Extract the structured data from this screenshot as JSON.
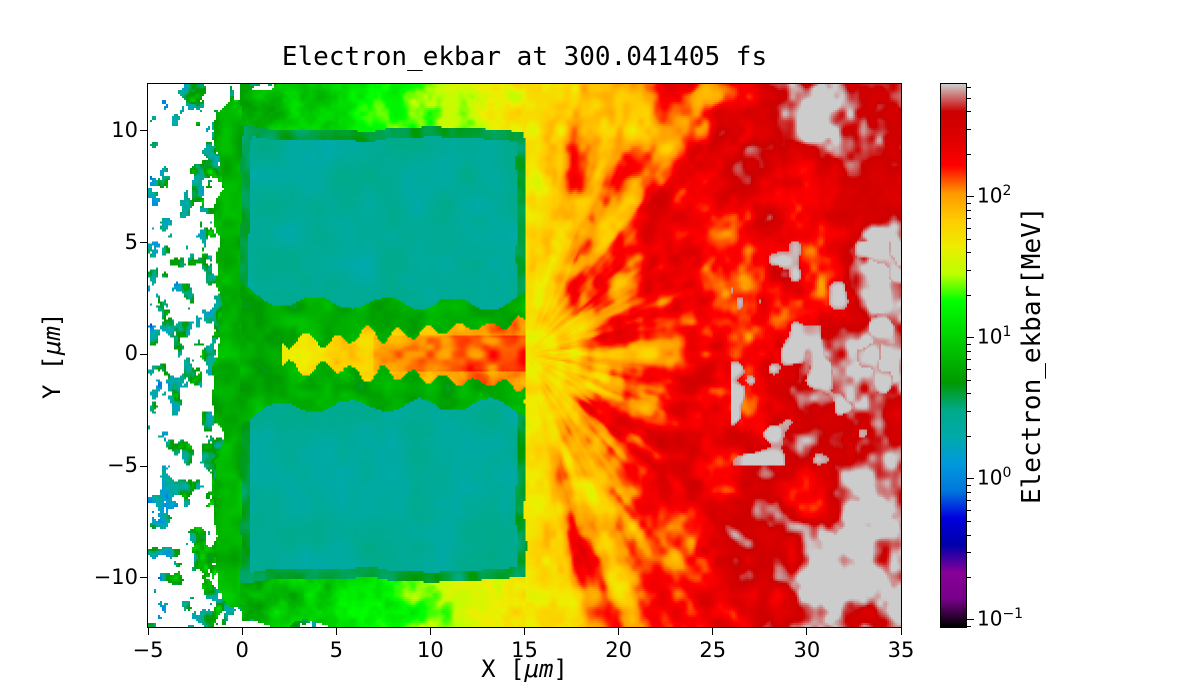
{
  "chart_data": {
    "type": "heatmap",
    "title": "Electron_ekbar at 300.041405 fs",
    "quantity": "Electron_ekbar",
    "time_fs": 300.041405,
    "xlabel": {
      "pre": "X [",
      "math": "μm",
      "post": "]"
    },
    "ylabel": {
      "pre": "Y [",
      "math": "μm",
      "post": "]"
    },
    "xlim": [
      -5,
      35
    ],
    "ylim": [
      -12.2,
      12.1
    ],
    "xticks": [
      {
        "value": -5,
        "label": "−5"
      },
      {
        "value": 0,
        "label": "0"
      },
      {
        "value": 5,
        "label": "5"
      },
      {
        "value": 10,
        "label": "10"
      },
      {
        "value": 15,
        "label": "15"
      },
      {
        "value": 20,
        "label": "20"
      },
      {
        "value": 25,
        "label": "25"
      },
      {
        "value": 30,
        "label": "30"
      },
      {
        "value": 35,
        "label": "35"
      }
    ],
    "yticks": [
      {
        "value": -10,
        "label": "−10"
      },
      {
        "value": -5,
        "label": "−5"
      },
      {
        "value": 0,
        "label": "0"
      },
      {
        "value": 5,
        "label": "5"
      },
      {
        "value": 10,
        "label": "10"
      }
    ],
    "grid": false,
    "colorbar": {
      "label": "Electron_ekbar[MeV]",
      "scale": "log",
      "unit": "MeV",
      "log10_min": -1.05,
      "log10_max": 2.8,
      "ticks": [
        {
          "log10": 2,
          "base": "10",
          "exp": "2"
        },
        {
          "log10": 1,
          "base": "10",
          "exp": "1"
        },
        {
          "log10": 0,
          "base": "10",
          "exp": "0"
        },
        {
          "log10": -1,
          "base": "10",
          "exp": "−1"
        }
      ],
      "colormap": {
        "name": "nipy_spectral",
        "stops": [
          [
            0.0,
            0,
            0,
            0
          ],
          [
            0.05,
            119,
            0,
            136
          ],
          [
            0.1,
            136,
            0,
            153
          ],
          [
            0.15,
            0,
            0,
            170
          ],
          [
            0.2,
            0,
            0,
            221
          ],
          [
            0.25,
            0,
            119,
            221
          ],
          [
            0.3,
            0,
            153,
            221
          ],
          [
            0.35,
            0,
            170,
            170
          ],
          [
            0.4,
            0,
            170,
            136
          ],
          [
            0.45,
            0,
            153,
            0
          ],
          [
            0.5,
            0,
            187,
            0
          ],
          [
            0.55,
            0,
            221,
            0
          ],
          [
            0.6,
            0,
            255,
            0
          ],
          [
            0.65,
            187,
            255,
            0
          ],
          [
            0.7,
            238,
            238,
            0
          ],
          [
            0.75,
            255,
            204,
            0
          ],
          [
            0.8,
            255,
            153,
            0
          ],
          [
            0.85,
            255,
            0,
            0
          ],
          [
            0.9,
            221,
            0,
            0
          ],
          [
            0.95,
            204,
            0,
            0
          ],
          [
            1.0,
            204,
            204,
            204
          ]
        ]
      }
    },
    "features": {
      "target_slab": {
        "x_um": [
          0,
          15
        ],
        "y_um": [
          -10,
          10
        ],
        "ekbar_mev": 2.5
      },
      "laser_channel": {
        "x_um": [
          0,
          15
        ],
        "half_width_um": 2.4,
        "wall_ekbar_mev": 6,
        "core_start_x_um": 2.1,
        "core_half_width_um": 1.3,
        "core_ekbar_mev": 55
      },
      "hot_electron_fan": {
        "origin_x_um": 15,
        "edge_ekbar_mev": 55,
        "far_ekbar_mev": 420,
        "peak_ekbar_mev": 600,
        "grey_patch_x_um": [
          26,
          34
        ]
      },
      "front_halo": {
        "ekbar_mev": 6,
        "thickness_um": 1.5
      },
      "vacuum_speckle": {
        "x_um": [
          -5,
          0
        ],
        "ekbar_mev_min": 0.6,
        "ekbar_mev_max": 7
      }
    }
  }
}
